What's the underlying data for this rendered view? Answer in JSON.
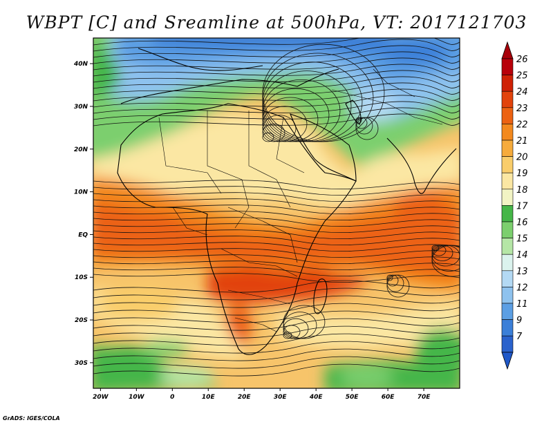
{
  "title": "WBPT [C] and Sreamline at 500hPa, VT: 2017121703",
  "footer": "GrADS: IGES/COLA",
  "map": {
    "lat_range": [
      -36,
      46
    ],
    "lon_range": [
      -22,
      80
    ],
    "lat_ticks": [
      {
        "value": 40,
        "label": "40N"
      },
      {
        "value": 30,
        "label": "30N"
      },
      {
        "value": 20,
        "label": "20N"
      },
      {
        "value": 10,
        "label": "10N"
      },
      {
        "value": 0,
        "label": "EQ"
      },
      {
        "value": -10,
        "label": "10S"
      },
      {
        "value": -20,
        "label": "20S"
      },
      {
        "value": -30,
        "label": "30S"
      }
    ],
    "lon_ticks": [
      {
        "value": -20,
        "label": "20W"
      },
      {
        "value": -10,
        "label": "10W"
      },
      {
        "value": 0,
        "label": "0"
      },
      {
        "value": 10,
        "label": "10E"
      },
      {
        "value": 20,
        "label": "20E"
      },
      {
        "value": 30,
        "label": "30E"
      },
      {
        "value": 40,
        "label": "40E"
      },
      {
        "value": 50,
        "label": "50E"
      },
      {
        "value": 60,
        "label": "60E"
      },
      {
        "value": 70,
        "label": "70E"
      }
    ]
  },
  "colorbar": {
    "labels": [
      "26",
      "25",
      "24",
      "23",
      "22",
      "21",
      "20",
      "19",
      "18",
      "17",
      "16",
      "15",
      "14",
      "13",
      "12",
      "11",
      "9",
      "7"
    ],
    "colors": [
      "#b8000a",
      "#cf2105",
      "#e2430c",
      "#ec6212",
      "#f3891e",
      "#f6ab3c",
      "#f9cd6b",
      "#fbe7a3",
      "#f2f4c4",
      "#45b648",
      "#7ccf6e",
      "#b5e6a6",
      "#dbf3ee",
      "#b3d9f4",
      "#8ec2ee",
      "#5c9fe4",
      "#3b7fd8",
      "#2a62cc"
    ],
    "top_arrow_color": "#a8000a",
    "bottom_arrow_color": "#1f58c8"
  }
}
